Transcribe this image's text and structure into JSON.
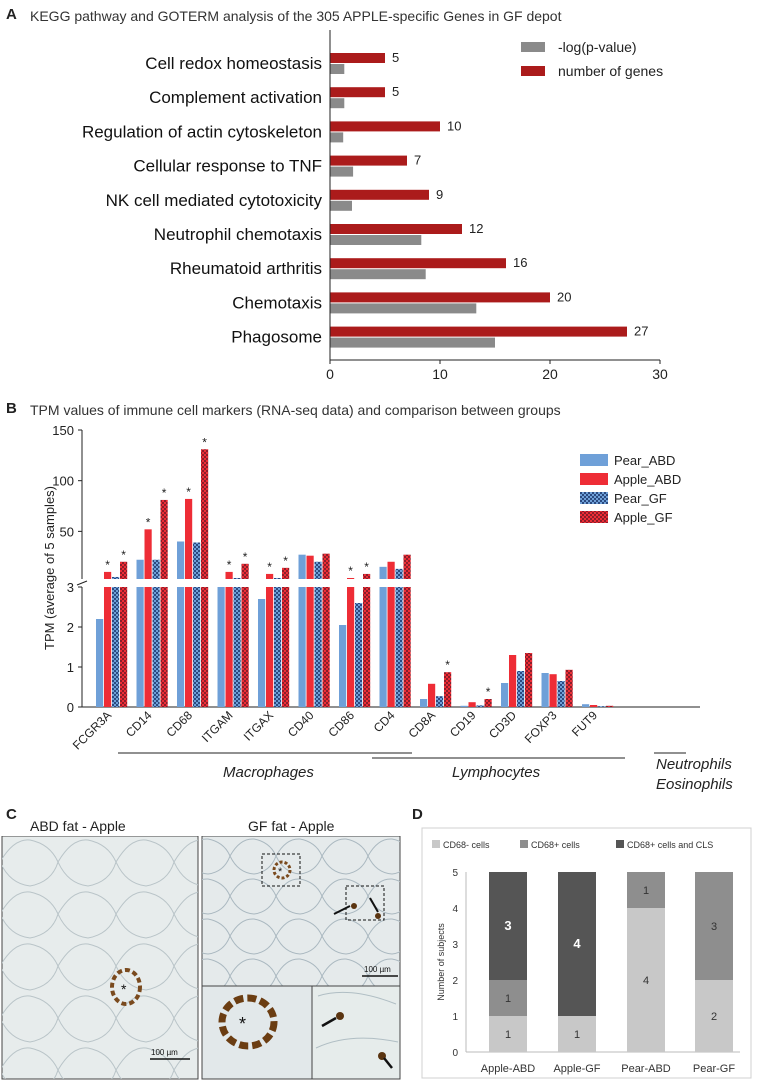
{
  "panel_a": {
    "letter": "A",
    "title": "KEGG pathway and GOTERM analysis of the 305 APPLE-specific Genes in GF depot"
  },
  "panel_b": {
    "letter": "B",
    "title": "TPM values of immune cell markers (RNA-seq data) and comparison between groups",
    "groups": [
      "Macrophages",
      "Lymphocytes",
      "Neutrophils",
      "Eosinophils"
    ]
  },
  "panel_c": {
    "letter": "C",
    "left_title": "ABD fat - Apple",
    "right_title": "GF fat - Apple",
    "scalebar_left": "100 µm",
    "scalebar_right": "100 µm",
    "asterisk": "*"
  },
  "panel_d": {
    "letter": "D"
  },
  "colors": {
    "red": "#ab1b1b",
    "gray": "#8a8a8a",
    "blue": "#6fa0d8",
    "brightred": "#ee2d36"
  },
  "chart_data": [
    {
      "type": "bar",
      "orientation": "horizontal",
      "categories": [
        "Cell redox homeostasis",
        "Complement activation",
        "Regulation of actin cytoskeleton",
        "Cellular response to TNF",
        "NK cell mediated cytotoxicity",
        "Neutrophil chemotaxis",
        "Rheumatoid arthritis",
        "Chemotaxis",
        "Phagosome"
      ],
      "series": [
        {
          "name": "number of genes",
          "color": "#ab1b1b",
          "values": [
            5,
            5,
            10,
            7,
            9,
            12,
            16,
            20,
            27
          ]
        },
        {
          "name": "-log(p-value)",
          "color": "#8a8a8a",
          "values": [
            1.3,
            1.3,
            1.2,
            2.1,
            2.0,
            8.3,
            8.7,
            13.3,
            15.0
          ]
        }
      ],
      "xlim": [
        0,
        30
      ],
      "xticks": [
        "0",
        "10",
        "20",
        "30"
      ],
      "legend": [
        "-log(p-value)",
        "number of genes"
      ]
    },
    {
      "type": "bar",
      "categories": [
        "FCGR3A",
        "CD14",
        "CD68",
        "ITGAM",
        "ITGAX",
        "CD40",
        "CD86",
        "CD4",
        "CD8A",
        "CD19",
        "CD3D",
        "FOXP3",
        "FUT9"
      ],
      "series": [
        {
          "name": "Pear_ABD",
          "values": [
            2.2,
            22,
            40,
            3.0,
            2.7,
            27,
            2.05,
            15,
            0.2,
            0.03,
            0.6,
            0.85,
            0.07
          ]
        },
        {
          "name": "Apple_ABD",
          "values": [
            10,
            52,
            82,
            10,
            8,
            26,
            4,
            20,
            0.58,
            0.12,
            1.3,
            0.82,
            0.05
          ]
        },
        {
          "name": "Pear_GF",
          "values": [
            5,
            22,
            39,
            4,
            4,
            20,
            2.6,
            13,
            0.27,
            0.04,
            0.9,
            0.65,
            0.02
          ]
        },
        {
          "name": "Apple_GF",
          "values": [
            20,
            81,
            131,
            18,
            14,
            28,
            8,
            27,
            0.87,
            0.2,
            1.35,
            0.93,
            0.03
          ]
        }
      ],
      "significant": [
        [
          "FCGR3A",
          "Apple_ABD"
        ],
        [
          "FCGR3A",
          "Apple_GF"
        ],
        [
          "CD14",
          "Apple_ABD"
        ],
        [
          "CD14",
          "Apple_GF"
        ],
        [
          "CD68",
          "Apple_ABD"
        ],
        [
          "CD68",
          "Apple_GF"
        ],
        [
          "ITGAM",
          "Apple_ABD"
        ],
        [
          "ITGAM",
          "Apple_GF"
        ],
        [
          "ITGAX",
          "Apple_ABD"
        ],
        [
          "ITGAX",
          "Apple_GF"
        ],
        [
          "CD86",
          "Apple_ABD"
        ],
        [
          "CD86",
          "Apple_GF"
        ],
        [
          "CD8A",
          "Apple_GF"
        ],
        [
          "CD19",
          "Apple_GF"
        ]
      ],
      "significance_marker": "*",
      "ylabel": "TPM (average of 5 samples)",
      "ylim": [
        0,
        150
      ],
      "axis_break": 3,
      "yticks_lower": [
        "0",
        "1",
        "2",
        "3"
      ],
      "yticks_upper": [
        "50",
        "100",
        "150"
      ],
      "legend": [
        "Pear_ABD",
        "Apple_ABD",
        "Pear_GF",
        "Apple_GF"
      ]
    },
    {
      "type": "bar",
      "stacked": true,
      "categories": [
        "Apple-ABD",
        "Apple-GF",
        "Pear-ABD",
        "Pear-GF"
      ],
      "series": [
        {
          "name": "CD68- cells",
          "color": "#c8c8c8",
          "values": [
            1,
            1,
            4,
            2
          ]
        },
        {
          "name": "CD68+ cells",
          "color": "#8e8e8e",
          "values": [
            1,
            0,
            1,
            3
          ]
        },
        {
          "name": "CD68+ cells and CLS",
          "color": "#555555",
          "values": [
            3,
            4,
            0,
            0
          ]
        }
      ],
      "ylabel": "Number of subjects",
      "ylim": [
        0,
        5
      ],
      "yticks": [
        "0",
        "1",
        "2",
        "3",
        "4",
        "5"
      ],
      "legend": [
        "CD68- cells",
        "CD68+ cells",
        "CD68+ cells and CLS"
      ]
    }
  ]
}
